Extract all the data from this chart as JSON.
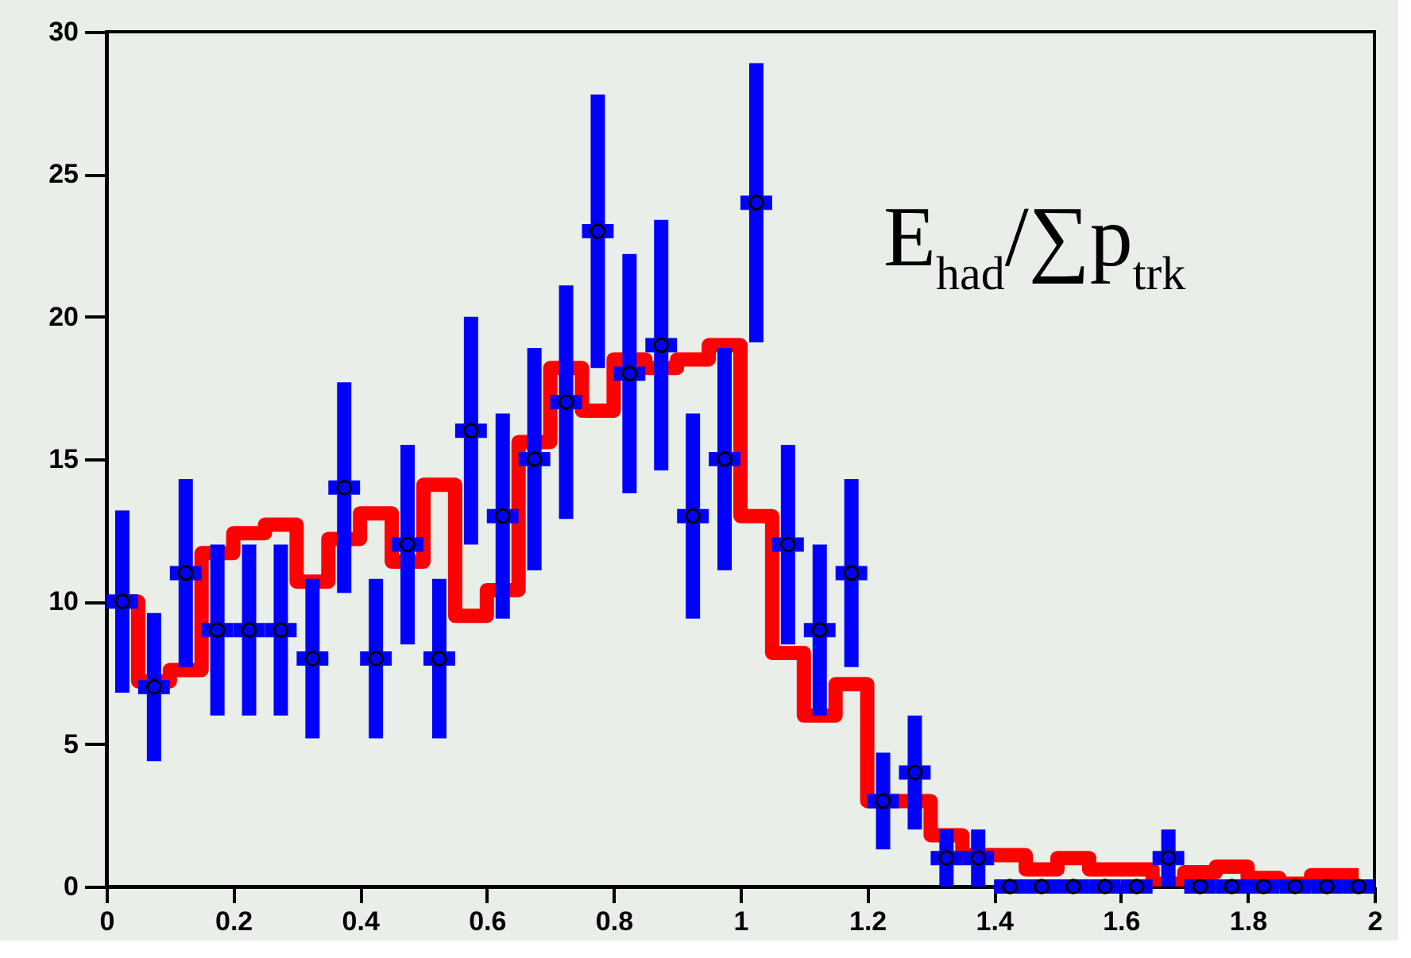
{
  "chart_data": {
    "type": "step",
    "annotations": [
      "E$_{had}$/∑p$_{trk}$"
    ],
    "xlim": [
      0,
      2
    ],
    "xticks": [
      0,
      0.2,
      0.4,
      0.6,
      0.8,
      1,
      1.2,
      1.4,
      1.6,
      1.8,
      2
    ],
    "ylim": [
      0,
      30
    ],
    "yticks": [
      0,
      5,
      10,
      15,
      20,
      25,
      30
    ],
    "series": [
      {
        "type": "step",
        "color": "#ff0000",
        "x": [
          0.025,
          0.075,
          0.125,
          0.175,
          0.225,
          0.275,
          0.325,
          0.375,
          0.425,
          0.475,
          0.525,
          0.575,
          0.625,
          0.675,
          0.725,
          0.775,
          0.825,
          0.875,
          0.925,
          0.975,
          1.025,
          1.075,
          1.125,
          1.175,
          1.225,
          1.275,
          1.325,
          1.375,
          1.425,
          1.475,
          1.525,
          1.575,
          1.625,
          1.675,
          1.725,
          1.775,
          1.825,
          1.875,
          1.925,
          1.975
        ],
        "values": [
          10,
          7.2,
          7.6,
          11.7,
          12.4,
          12.7,
          10.7,
          12.2,
          13.1,
          11.4,
          14.1,
          9.5,
          10.4,
          15.6,
          18.2,
          16.7,
          18.5,
          18.2,
          18.5,
          19,
          13,
          8.2,
          6,
          7.1,
          3,
          3,
          1.8,
          1.1,
          1.1,
          0.6,
          1,
          0.6,
          0.6,
          0.1,
          0.5,
          0.7,
          0.3,
          0.1,
          0.4,
          0.4
        ]
      },
      {
        "type": "scatter",
        "color": "#0000ff",
        "x": [
          0.025,
          0.075,
          0.125,
          0.175,
          0.225,
          0.275,
          0.325,
          0.375,
          0.425,
          0.475,
          0.525,
          0.575,
          0.625,
          0.675,
          0.725,
          0.775,
          0.825,
          0.875,
          0.925,
          0.975,
          1.025,
          1.075,
          1.125,
          1.175,
          1.225,
          1.275,
          1.325,
          1.375,
          1.425,
          1.475,
          1.525,
          1.575,
          1.625,
          1.675,
          1.725,
          1.775,
          1.825,
          1.875,
          1.925,
          1.975
        ],
        "values": [
          10,
          7,
          11,
          9,
          9,
          9,
          8,
          14,
          8,
          12,
          8,
          16,
          13,
          15,
          17,
          23,
          18,
          19,
          13,
          15,
          24,
          12,
          9,
          11,
          3,
          4,
          1,
          1,
          0,
          0,
          0,
          0,
          0,
          1,
          0,
          0,
          0,
          0,
          0,
          0
        ],
        "errors": [
          3.2,
          2.6,
          3.3,
          3,
          3,
          3,
          2.8,
          3.7,
          2.8,
          3.5,
          2.8,
          4,
          3.6,
          3.9,
          4.1,
          4.8,
          4.2,
          4.4,
          3.6,
          3.9,
          4.9,
          3.5,
          3,
          3.3,
          1.7,
          2,
          1,
          1,
          null,
          null,
          null,
          null,
          null,
          1,
          null,
          null,
          null,
          null,
          null,
          null
        ],
        "xerrors": [
          0.025,
          0.025,
          0.025,
          0.025,
          0.025,
          0.025,
          0.025,
          0.025,
          0.025,
          0.025,
          0.025,
          0.025,
          0.025,
          0.025,
          0.025,
          0.025,
          0.025,
          0.025,
          0.025,
          0.025,
          0.025,
          0.025,
          0.025,
          0.025,
          0.025,
          0.025,
          0.025,
          0.025,
          0.025,
          0.025,
          0.025,
          0.025,
          0.025,
          0.025,
          0.025,
          0.025,
          0.025,
          0.025,
          0.025,
          0.025
        ]
      }
    ]
  }
}
